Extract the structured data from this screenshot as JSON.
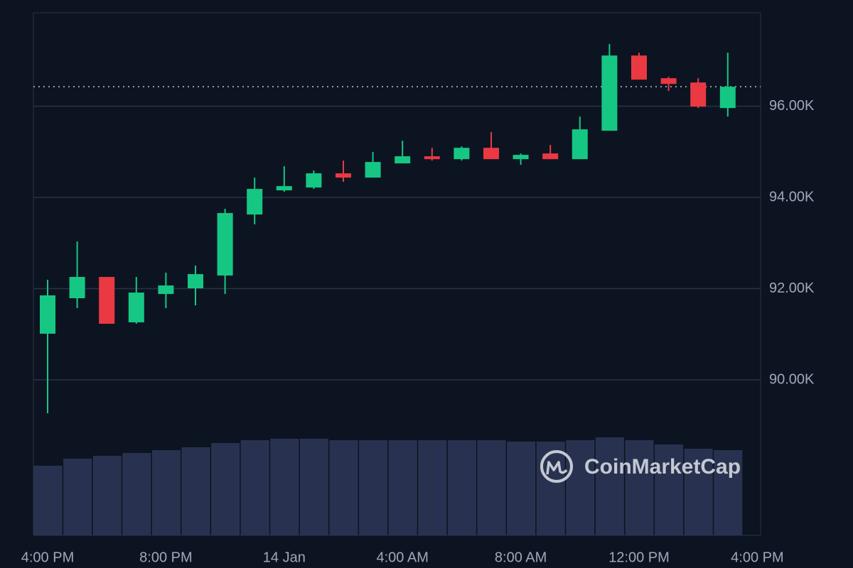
{
  "chart_data": {
    "type": "candlestick",
    "categories": [
      "4:00 PM",
      null,
      null,
      null,
      "8:00 PM",
      null,
      null,
      null,
      "14 Jan",
      null,
      null,
      null,
      "4:00 AM",
      null,
      null,
      null,
      "8:00 AM",
      null,
      null,
      null,
      "12:00 PM",
      null,
      null,
      null,
      "4:00 PM"
    ],
    "open": [
      91012,
      91790,
      92257,
      91261,
      91883,
      92008,
      92288,
      93626,
      94156,
      94218,
      94529,
      94436,
      94747,
      94903,
      94840,
      95089,
      94840,
      94965,
      94840,
      95463,
      97113,
      96615,
      96521,
      95961,
      null
    ],
    "high": [
      92195,
      93035,
      92257,
      92257,
      92350,
      92506,
      93751,
      94436,
      94685,
      94591,
      94809,
      94996,
      95245,
      95089,
      95121,
      95432,
      94965,
      95152,
      95774,
      97362,
      97175,
      96646,
      96615,
      97175,
      null
    ],
    "low": [
      89268,
      91572,
      91230,
      91230,
      91572,
      91634,
      91883,
      93409,
      94125,
      94187,
      94342,
      94436,
      94747,
      94809,
      94809,
      94840,
      94716,
      94840,
      94840,
      95463,
      96584,
      96335,
      95961,
      95774,
      null
    ],
    "close": [
      91852,
      92257,
      91230,
      91914,
      92070,
      92319,
      93658,
      94187,
      94249,
      94529,
      94436,
      94778,
      94903,
      94840,
      95089,
      94840,
      94934,
      94840,
      95494,
      97113,
      96584,
      96490,
      95992,
      96428,
      null
    ],
    "volume": [
      98,
      108,
      112,
      116,
      120,
      124,
      130,
      134,
      136,
      136,
      134,
      134,
      134,
      134,
      134,
      134,
      132,
      132,
      134,
      138,
      134,
      128,
      122,
      120,
      null
    ],
    "up_color": "#16c784",
    "down_color": "#ea3943",
    "volume_color": "#283250",
    "ylim": [
      86590,
      98050
    ],
    "yticks": [
      {
        "value": 90000,
        "label": "90.00K"
      },
      {
        "value": 92000,
        "label": "92.00K"
      },
      {
        "value": 94000,
        "label": "94.00K"
      },
      {
        "value": 96000,
        "label": "96.00K"
      }
    ],
    "grid": true,
    "watermark": "CoinMarketCap"
  }
}
